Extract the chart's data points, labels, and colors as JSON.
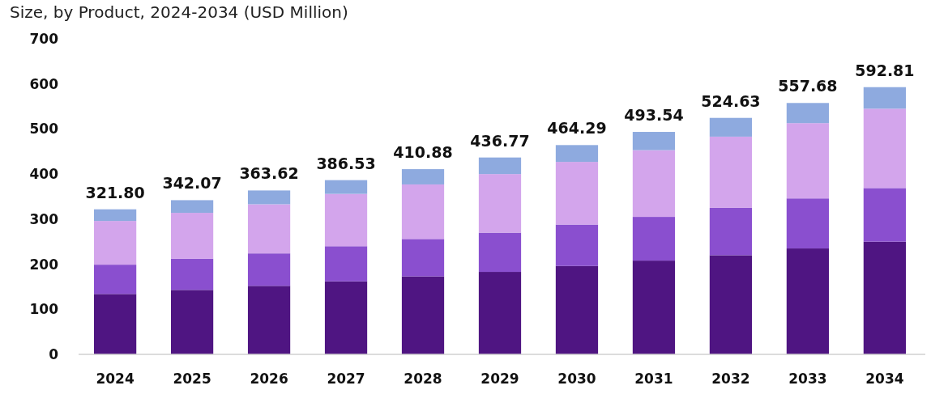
{
  "chart_data": {
    "type": "bar",
    "title": "Size, by Product, 2024-2034 (USD Million)",
    "stacked": true,
    "categories": [
      "2024",
      "2025",
      "2026",
      "2027",
      "2028",
      "2029",
      "2030",
      "2031",
      "2032",
      "2033",
      "2034"
    ],
    "series": [
      {
        "color": "#4f1582",
        "values": [
          134,
          143,
          152,
          162,
          173,
          183,
          196,
          208,
          220,
          235,
          250
        ]
      },
      {
        "color": "#8a4fcf",
        "values": [
          65,
          69,
          72,
          78,
          83,
          87,
          92,
          97,
          105,
          111,
          119
        ]
      },
      {
        "color": "#d3a5ec",
        "values": [
          97,
          102,
          109,
          116,
          121,
          130,
          139,
          148,
          158,
          167,
          176
        ]
      },
      {
        "color": "#8eaadf",
        "values": [
          25.8,
          28.07,
          30.62,
          30.53,
          33.88,
          36.77,
          37.29,
          40.54,
          41.63,
          44.68,
          47.81
        ]
      }
    ],
    "totals": [
      "321.80",
      "342.07",
      "363.62",
      "386.53",
      "410.88",
      "436.77",
      "464.29",
      "493.54",
      "524.63",
      "557.68",
      "592.81"
    ],
    "ylim": [
      0,
      700
    ],
    "yticks": [
      0,
      100,
      200,
      300,
      400,
      500,
      600,
      700
    ],
    "grid": false
  }
}
